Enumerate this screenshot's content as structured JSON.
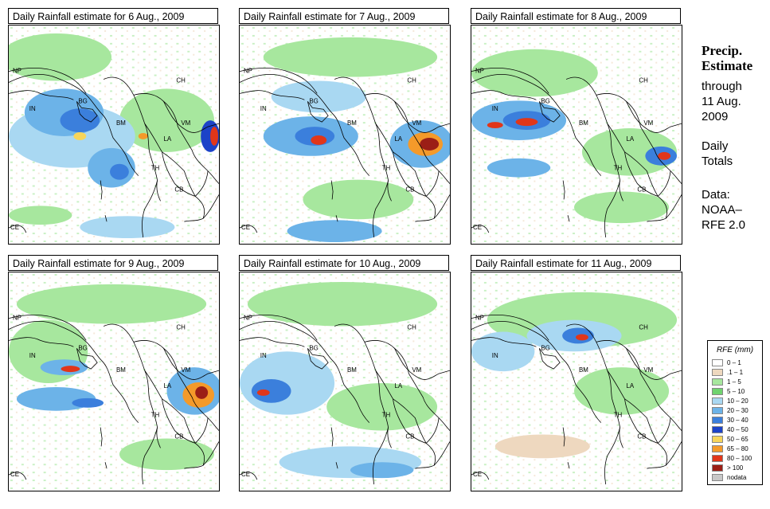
{
  "panels": [
    {
      "title": "Daily Rainfall estimate for  6 Aug., 2009"
    },
    {
      "title": "Daily Rainfall estimate for  7 Aug., 2009"
    },
    {
      "title": "Daily Rainfall estimate for  8 Aug., 2009"
    },
    {
      "title": "Daily Rainfall estimate for  9 Aug., 2009"
    },
    {
      "title": "Daily Rainfall estimate for  10 Aug., 2009"
    },
    {
      "title": "Daily Rainfall estimate for  11 Aug., 2009"
    }
  ],
  "map_labels": [
    "NP",
    "IN",
    "BG",
    "BM",
    "CH",
    "VM",
    "LA",
    "TH",
    "CB",
    "CE"
  ],
  "side": {
    "heading1": "Precip.",
    "heading2": "Estimate",
    "line1": "through",
    "line2": "11 Aug.",
    "line3": "2009",
    "line4": "Daily",
    "line5": "Totals",
    "line6": "Data:",
    "line7": "NOAA–",
    "line8": "RFE 2.0"
  },
  "legend": {
    "title": "RFE (mm)",
    "items": [
      {
        "label": "0 – 1",
        "color": "#ffffff"
      },
      {
        "label": ".1 – 1",
        "color": "#eed8bf"
      },
      {
        "label": "1 – 5",
        "color": "#a7e79e"
      },
      {
        "label": "5 – 10",
        "color": "#6fd36f"
      },
      {
        "label": "10 – 20",
        "color": "#a9d8f2"
      },
      {
        "label": "20 – 30",
        "color": "#6cb3e8"
      },
      {
        "label": "30 – 40",
        "color": "#3b7fdc"
      },
      {
        "label": "40 – 50",
        "color": "#1c43c8"
      },
      {
        "label": "50 – 65",
        "color": "#f7d55a"
      },
      {
        "label": "65 – 80",
        "color": "#f49a2a"
      },
      {
        "label": "80 – 100",
        "color": "#e1361a"
      },
      {
        "label": "> 100",
        "color": "#9b1f16"
      },
      {
        "label": "nodata",
        "color": "#c8c8c8"
      }
    ]
  }
}
